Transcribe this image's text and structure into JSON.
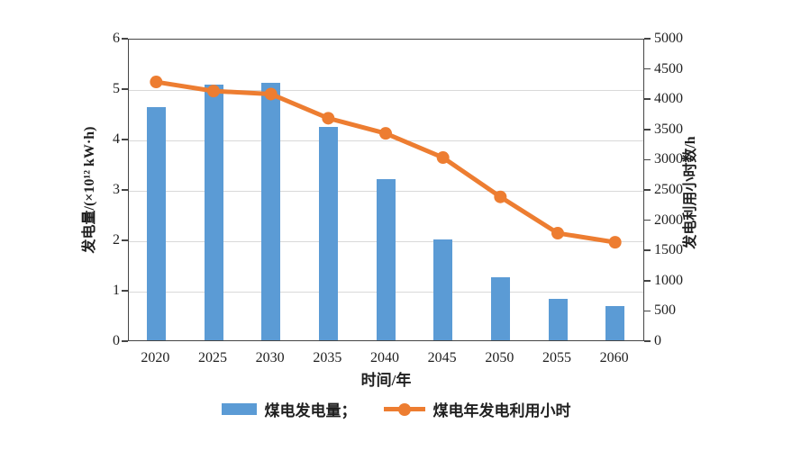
{
  "chart_data": {
    "type": "combo-bar-line",
    "categories": [
      "2020",
      "2025",
      "2030",
      "2035",
      "2040",
      "2045",
      "2050",
      "2055",
      "2060"
    ],
    "series": [
      {
        "name": "煤电发电量",
        "type": "bar",
        "axis": "left",
        "color": "#5B9BD5",
        "values": [
          4.63,
          5.08,
          5.1,
          4.24,
          3.2,
          2.0,
          1.25,
          0.82,
          0.67
        ]
      },
      {
        "name": "煤电年发电利用小时",
        "type": "line",
        "axis": "right",
        "color": "#ED7D31",
        "values": [
          4300,
          4150,
          4100,
          3700,
          3450,
          3050,
          2400,
          1800,
          1650
        ]
      }
    ],
    "left_axis": {
      "label": "发电量/(×10¹² kW·h)",
      "min": 0,
      "max": 6,
      "step": 1,
      "ticks": [
        "0",
        "1",
        "2",
        "3",
        "4",
        "5",
        "6"
      ]
    },
    "right_axis": {
      "label": "发电利用小时数/h",
      "min": 0,
      "max": 5000,
      "step": 500,
      "ticks": [
        "0",
        "500",
        "1000",
        "1500",
        "2000",
        "2500",
        "3000",
        "3500",
        "4000",
        "4500",
        "5000"
      ]
    },
    "xlabel": "时间/年",
    "grid": "horizontal",
    "legend_position": "bottom"
  },
  "legend": {
    "bar_label": "煤电发电量；",
    "line_label": "煤电年发电利用小时"
  },
  "colors": {
    "bar": "#5B9BD5",
    "line": "#ED7D31",
    "grid": "#D9D9D9",
    "axis": "#454545",
    "text": "#1F1F1F"
  }
}
